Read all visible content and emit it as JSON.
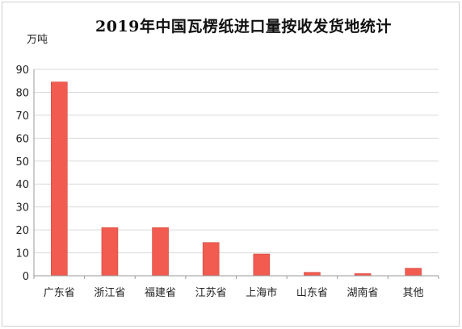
{
  "chart_data": {
    "type": "bar",
    "title": "2019年中国瓦楞纸进口量按收发货地统计",
    "unit": "万吨",
    "xlabel": "",
    "ylabel": "万吨",
    "ylim": [
      0,
      90
    ],
    "yticks": [
      0,
      10,
      20,
      30,
      40,
      50,
      60,
      70,
      80,
      90
    ],
    "categories": [
      "广东省",
      "浙江省",
      "福建省",
      "江苏省",
      "上海市",
      "山东省",
      "湖南省",
      "其他"
    ],
    "values": [
      84.5,
      21,
      21,
      14.5,
      9.5,
      1.5,
      1,
      3.3
    ],
    "grid": true,
    "legend": "none",
    "bar_color": "#f15b50"
  }
}
